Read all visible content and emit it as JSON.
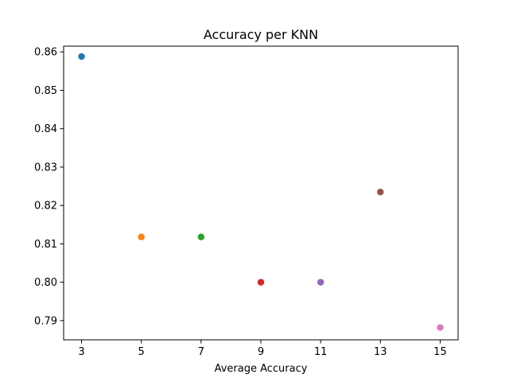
{
  "chart_data": {
    "type": "scatter",
    "title": "Accuracy per KNN",
    "xlabel": "Average Accuracy",
    "ylabel": "",
    "xlim": [
      2.4,
      15.6
    ],
    "ylim": [
      0.785,
      0.8615
    ],
    "x_ticks": [
      "3",
      "5",
      "7",
      "9",
      "11",
      "13",
      "15"
    ],
    "y_ticks": [
      "0.79",
      "0.80",
      "0.81",
      "0.82",
      "0.83",
      "0.84",
      "0.85",
      "0.86"
    ],
    "grid": false,
    "points": [
      {
        "x": 3,
        "y": 0.8588,
        "color": "#1f77b4"
      },
      {
        "x": 5,
        "y": 0.8118,
        "color": "#ff7f0e"
      },
      {
        "x": 7,
        "y": 0.8118,
        "color": "#2ca02c"
      },
      {
        "x": 9,
        "y": 0.8,
        "color": "#d62728"
      },
      {
        "x": 11,
        "y": 0.8,
        "color": "#9467bd"
      },
      {
        "x": 13,
        "y": 0.8235,
        "color": "#8c564b"
      },
      {
        "x": 15,
        "y": 0.7882,
        "color": "#e377c2"
      }
    ]
  }
}
